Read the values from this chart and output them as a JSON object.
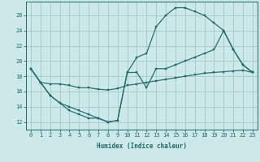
{
  "background_color": "#cce8e8",
  "grid_color": "#aacccc",
  "line_color": "#1a6b6b",
  "xlabel": "Humidex (Indice chaleur)",
  "xlim": [
    -0.5,
    23.5
  ],
  "ylim": [
    11.0,
    27.8
  ],
  "yticks": [
    12,
    14,
    16,
    18,
    20,
    22,
    24,
    26
  ],
  "xticks": [
    0,
    1,
    2,
    3,
    4,
    5,
    6,
    7,
    8,
    9,
    10,
    11,
    12,
    13,
    14,
    15,
    16,
    17,
    18,
    19,
    20,
    21,
    22,
    23
  ],
  "line_flat_x": [
    0,
    1,
    2,
    3,
    4,
    5,
    6,
    7,
    8,
    9,
    10,
    11,
    12,
    13,
    14,
    15,
    16,
    17,
    18,
    19,
    20,
    21,
    22,
    23
  ],
  "line_flat_y": [
    19.0,
    17.2,
    17.0,
    17.0,
    16.8,
    16.5,
    16.5,
    16.3,
    16.2,
    16.4,
    16.8,
    17.0,
    17.2,
    17.4,
    17.6,
    17.8,
    18.0,
    18.2,
    18.4,
    18.5,
    18.6,
    18.7,
    18.8,
    18.5
  ],
  "line_high_x": [
    0,
    1,
    2,
    3,
    4,
    5,
    6,
    7,
    8,
    9,
    10,
    11,
    12,
    13,
    14,
    15,
    16,
    17,
    18,
    19,
    20,
    21,
    22,
    23
  ],
  "line_high_y": [
    19.0,
    17.2,
    15.5,
    14.5,
    14.0,
    13.5,
    13.0,
    12.5,
    12.0,
    12.2,
    18.5,
    20.5,
    21.0,
    24.5,
    26.0,
    27.0,
    27.0,
    26.5,
    26.0,
    25.0,
    24.0,
    21.5,
    19.5,
    18.5
  ],
  "line_low_x": [
    0,
    1,
    2,
    3,
    4,
    5,
    6,
    7,
    8,
    9,
    10,
    11,
    12,
    13,
    14,
    15,
    16,
    17,
    18,
    19,
    20,
    21,
    22,
    23
  ],
  "line_low_y": [
    19.0,
    17.2,
    15.5,
    14.5,
    13.5,
    13.0,
    12.5,
    12.5,
    12.0,
    12.2,
    18.5,
    18.5,
    16.5,
    19.0,
    19.0,
    19.5,
    20.0,
    20.5,
    21.0,
    21.5,
    24.0,
    21.5,
    19.5,
    18.5
  ]
}
